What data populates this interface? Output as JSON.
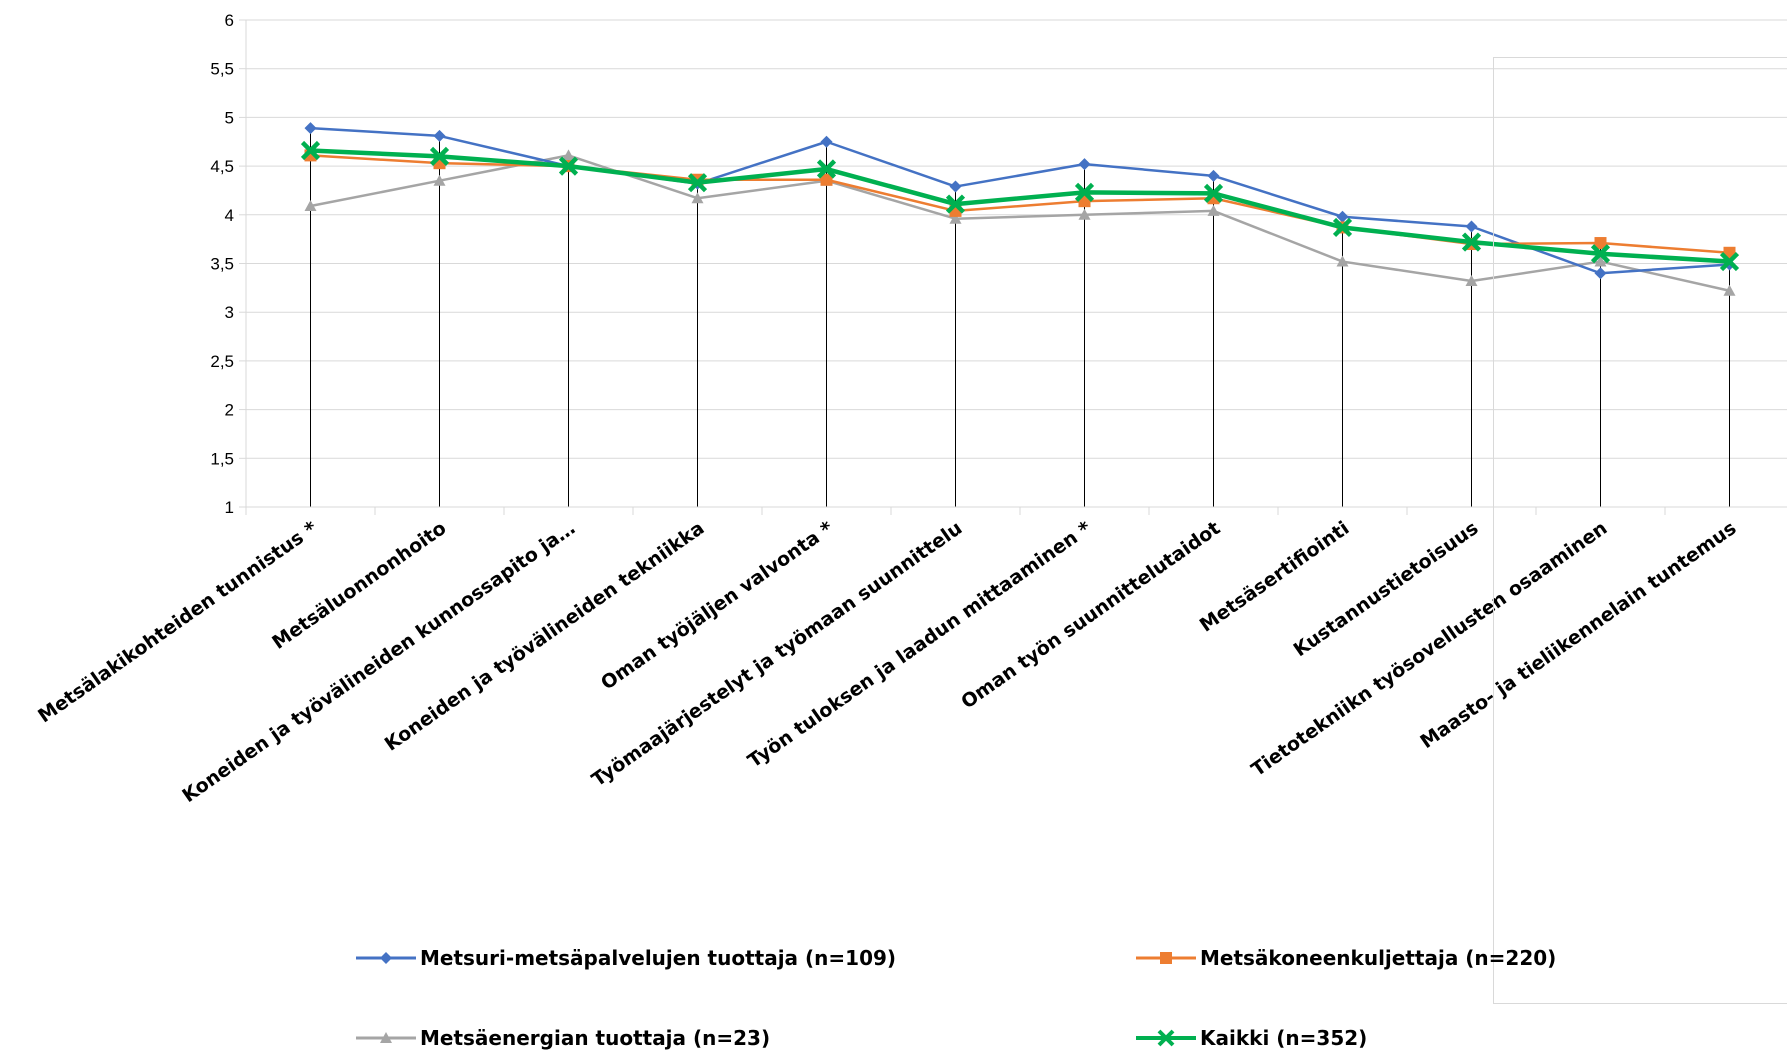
{
  "chart_data": {
    "type": "line",
    "title": "",
    "xlabel": "",
    "ylabel": "",
    "ylim": [
      1,
      6
    ],
    "yticks": [
      "1",
      "1,5",
      "2",
      "2,5",
      "3",
      "3,5",
      "4",
      "4,5",
      "5",
      "5,5",
      "6"
    ],
    "grid": "horizontal",
    "legend_position": "bottom",
    "categories": [
      "Metsälakikohteiden tunnistus *",
      "Metsäluonnonhoito",
      "Koneiden ja työvälineiden kunnossapito ja…",
      "Koneiden ja työvälineiden tekniikka",
      "Oman työjäljen valvonta *",
      "Työmaajärjestelyt ja työmaan suunnittelu",
      "Työn tuloksen ja laadun mittaaminen *",
      "Oman työn suunnittelutaidot",
      "Metsäsertifiointi",
      "Kustannustietoisuus",
      "Tietotekniikn työsovellusten osaaminen",
      "Maasto- ja tieliikennelain tuntemus"
    ],
    "series": [
      {
        "name": "Metsuri-metsäpalvelujen tuottaja (n=109)",
        "color": "#4472C4",
        "marker": "diamond",
        "values": [
          4.89,
          4.81,
          4.5,
          4.32,
          4.75,
          4.29,
          4.52,
          4.4,
          3.98,
          3.88,
          3.4,
          3.49
        ]
      },
      {
        "name": "Metsäkoneenkuljettaja (n=220)",
        "color": "#ED7D31",
        "marker": "square",
        "values": [
          4.61,
          4.53,
          4.5,
          4.36,
          4.36,
          4.04,
          4.14,
          4.17,
          3.87,
          3.7,
          3.71,
          3.61
        ]
      },
      {
        "name": "Metsäenergian tuottaja (n=23)",
        "color": "#A5A5A5",
        "marker": "triangle",
        "values": [
          4.09,
          4.35,
          4.61,
          4.17,
          4.35,
          3.96,
          4.0,
          4.04,
          3.52,
          3.32,
          3.52,
          3.22
        ]
      },
      {
        "name": "Kaikki (n=352)",
        "color": "#00B050",
        "marker": "x",
        "values": [
          4.66,
          4.6,
          4.5,
          4.33,
          4.47,
          4.11,
          4.23,
          4.22,
          3.87,
          3.72,
          3.6,
          3.52
        ]
      }
    ]
  }
}
